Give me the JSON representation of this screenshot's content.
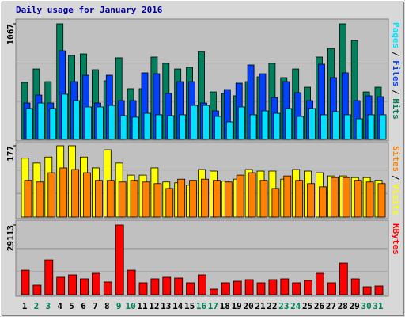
{
  "chart_data": [
    {
      "type": "bar",
      "title": "Daily usage for January 2016",
      "ylim": [
        0,
        1067
      ],
      "yticks": [
        1067
      ],
      "series": [
        {
          "name": "Hits",
          "color": "#00805c",
          "values": [
            526,
            650,
            533,
            1067,
            775,
            789,
            643,
            541,
            753,
            468,
            468,
            760,
            702,
            650,
            665,
            811,
            438,
            424,
            402,
            533,
            577,
            702,
            570,
            650,
            482,
            760,
            840,
            1067,
            913,
            438,
            482
          ]
        },
        {
          "name": "Files",
          "color": "#0040ff",
          "values": [
            336,
            409,
            336,
            818,
            533,
            592,
            336,
            592,
            358,
            358,
            614,
            606,
            424,
            533,
            533,
            336,
            263,
            460,
            519,
            687,
            606,
            387,
            533,
            431,
            358,
            694,
            570,
            614,
            358,
            402,
            394
          ]
        },
        {
          "name": "Pages",
          "color": "#00e0ff",
          "values": [
            285,
            336,
            285,
            417,
            358,
            300,
            300,
            314,
            219,
            205,
            241,
            227,
            219,
            227,
            314,
            314,
            212,
            161,
            300,
            227,
            263,
            241,
            285,
            212,
            285,
            227,
            256,
            227,
            190,
            227,
            227
          ]
        }
      ]
    },
    {
      "type": "bar",
      "ylim": [
        0,
        177
      ],
      "yticks": [
        177
      ],
      "series": [
        {
          "name": "Visits",
          "color": "#ffff00",
          "values": [
            146,
            134,
            149,
            177,
            177,
            149,
            122,
            167,
            134,
            104,
            104,
            122,
            87,
            85,
            79,
            118,
            114,
            89,
            94,
            118,
            114,
            114,
            94,
            118,
            114,
            110,
            102,
            102,
            98,
            98,
            91
          ]
        },
        {
          "name": "Sites",
          "color": "#ff8000",
          "values": [
            91,
            87,
            110,
            122,
            118,
            110,
            91,
            91,
            87,
            91,
            87,
            83,
            71,
            94,
            91,
            94,
            91,
            87,
            104,
            110,
            91,
            71,
            102,
            91,
            83,
            75,
            98,
            98,
            91,
            87,
            83
          ]
        }
      ]
    },
    {
      "type": "bar",
      "ylim": [
        0,
        29113
      ],
      "yticks": [
        29113
      ],
      "categories": [
        "1",
        "2",
        "3",
        "4",
        "5",
        "6",
        "7",
        "8",
        "9",
        "10",
        "11",
        "12",
        "13",
        "14",
        "15",
        "16",
        "17",
        "18",
        "19",
        "20",
        "21",
        "22",
        "23",
        "24",
        "25",
        "26",
        "27",
        "28",
        "29",
        "30",
        "31"
      ],
      "label_colors": [
        "#000000",
        "#00805c",
        "#00805c",
        "#000000",
        "#000000",
        "#000000",
        "#000000",
        "#000000",
        "#00805c",
        "#00805c",
        "#000000",
        "#000000",
        "#000000",
        "#000000",
        "#000000",
        "#00805c",
        "#00805c",
        "#000000",
        "#000000",
        "#000000",
        "#000000",
        "#000000",
        "#00805c",
        "#00805c",
        "#000000",
        "#000000",
        "#000000",
        "#000000",
        "#000000",
        "#00805c",
        "#00805c"
      ],
      "series": [
        {
          "name": "KBytes",
          "color": "#ff0000",
          "values": [
            10231,
            3970,
            14535,
            7283,
            8276,
            6621,
            8938,
            5300,
            29113,
            10231,
            4965,
            6621,
            7283,
            6952,
            4965,
            8276,
            2316,
            4965,
            5627,
            6290,
            4965,
            6290,
            6621,
            4965,
            5958,
            8938,
            4965,
            13212,
            6621,
            3308,
            3639
          ]
        }
      ]
    }
  ]
}
